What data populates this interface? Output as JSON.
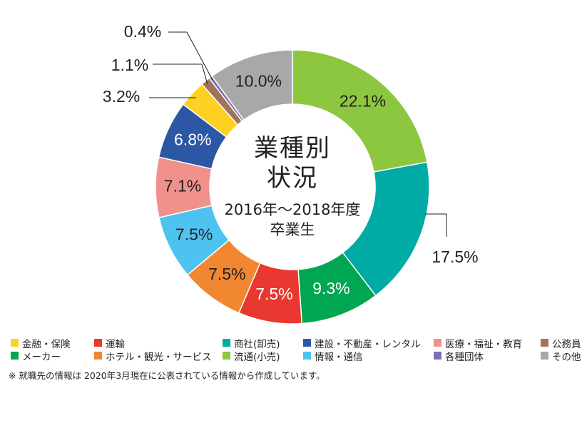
{
  "chart_data": {
    "type": "pie",
    "subtype": "donut",
    "title_lines": [
      "業種別",
      "状況",
      "2016年〜2018年度",
      "卒業生"
    ],
    "series": [
      {
        "name": "流通(小売)",
        "value": 22.1,
        "label": "22.1%",
        "color": "#8dc63f"
      },
      {
        "name": "商社(卸売)",
        "value": 17.5,
        "label": "17.5%",
        "color": "#00aaa5"
      },
      {
        "name": "メーカー",
        "value": 9.3,
        "label": "9.3%",
        "color": "#00a651"
      },
      {
        "name": "運輸",
        "value": 7.5,
        "label": "7.5%",
        "color": "#e8382f"
      },
      {
        "name": "ホテル・観光・サービス",
        "value": 7.5,
        "label": "7.5%",
        "color": "#f18730"
      },
      {
        "name": "情報・通信",
        "value": 7.5,
        "label": "7.5%",
        "color": "#4fc3f0"
      },
      {
        "name": "医療・福祉・教育",
        "value": 7.1,
        "label": "7.1%",
        "color": "#f0918b"
      },
      {
        "name": "建設・不動産・レンタル",
        "value": 6.8,
        "label": "6.8%",
        "color": "#2c57a4"
      },
      {
        "name": "金融・保険",
        "value": 3.2,
        "label": "3.2%",
        "color": "#fcd123"
      },
      {
        "name": "公務員",
        "value": 1.1,
        "label": "1.1%",
        "color": "#a0745a"
      },
      {
        "name": "各種団体",
        "value": 0.4,
        "label": "0.4%",
        "color": "#7f6cb5"
      },
      {
        "name": "その他",
        "value": 10.0,
        "label": "10.0%",
        "color": "#a8a8a8"
      }
    ],
    "legend_placement": "bottom"
  },
  "legend": [
    {
      "name": "金融・保険",
      "color": "#fcd123"
    },
    {
      "name": "運輸",
      "color": "#e8382f"
    },
    {
      "name": "商社(卸売)",
      "color": "#00aaa5"
    },
    {
      "name": "建設・不動産・レンタル",
      "color": "#2c57a4"
    },
    {
      "name": "医療・福祉・教育",
      "color": "#f0918b"
    },
    {
      "name": "公務員",
      "color": "#a0745a"
    },
    {
      "name": "メーカー",
      "color": "#00a651"
    },
    {
      "name": "ホテル・観光・サービス",
      "color": "#f18730"
    },
    {
      "name": "流通(小売)",
      "color": "#8dc63f"
    },
    {
      "name": "情報・通信",
      "color": "#4fc3f0"
    },
    {
      "name": "各種団体",
      "color": "#7f6cb5"
    },
    {
      "name": "その他",
      "color": "#a8a8a8"
    }
  ],
  "footnote": "※ 就職先の情報は 2020年3月現在に公表されている情報から作成しています。"
}
